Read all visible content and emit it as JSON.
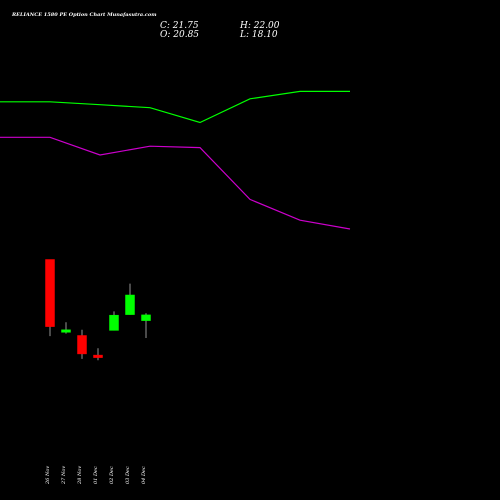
{
  "header": {
    "title": "RELIANCE 1580  PE Option  Chart Munafasutra.com",
    "close": "C: 21.75",
    "high": "H: 22.00",
    "open": "O: 20.85",
    "low": "L: 18.10"
  },
  "chart_data": {
    "type": "candlestick",
    "title": "RELIANCE 1580  PE Option  Chart Munafasutra.com",
    "categories": [
      "26 Nov",
      "27 Nov",
      "28 Nov",
      "01 Dec",
      "02 Dec",
      "03 Dec",
      "04 Dec"
    ],
    "candles": [
      {
        "date": "26 Nov",
        "open": 30.5,
        "high": 30.5,
        "low": 18.4,
        "close": 19.9
      },
      {
        "date": "27 Nov",
        "open": 19.0,
        "high": 20.6,
        "low": 18.8,
        "close": 19.4
      },
      {
        "date": "28 Nov",
        "open": 18.5,
        "high": 19.4,
        "low": 14.8,
        "close": 15.6
      },
      {
        "date": "01 Dec",
        "open": 15.4,
        "high": 16.5,
        "low": 14.6,
        "close": 15.0
      },
      {
        "date": "02 Dec",
        "open": 19.3,
        "high": 22.3,
        "low": 19.3,
        "close": 21.7
      },
      {
        "date": "03 Dec",
        "open": 21.8,
        "high": 26.7,
        "low": 21.8,
        "close": 24.9
      },
      {
        "date": "04 Dec",
        "open": 20.85,
        "high": 22.0,
        "low": 18.1,
        "close": 21.75
      }
    ],
    "bullish_color": "#00ff00",
    "bearish_color": "#ff0000",
    "series": [
      {
        "color": "#00ff00",
        "type": "line",
        "x": [
          "26 Nov",
          "27 Nov",
          "28 Nov",
          "01 Dec",
          "02 Dec",
          "03 Dec",
          "04 Dec",
          "05 Dec"
        ],
        "values": [
          104,
          104,
          103,
          102,
          97,
          105,
          107.5,
          107.5
        ]
      },
      {
        "color": "#cc00cc",
        "type": "line",
        "x": [
          "26 Nov",
          "27 Nov",
          "28 Nov",
          "01 Dec",
          "02 Dec",
          "03 Dec",
          "04 Dec",
          "05 Dec"
        ],
        "values": [
          92,
          92,
          86,
          89,
          88.5,
          71,
          64,
          61
        ]
      }
    ],
    "background": "#000000",
    "grid": false
  }
}
